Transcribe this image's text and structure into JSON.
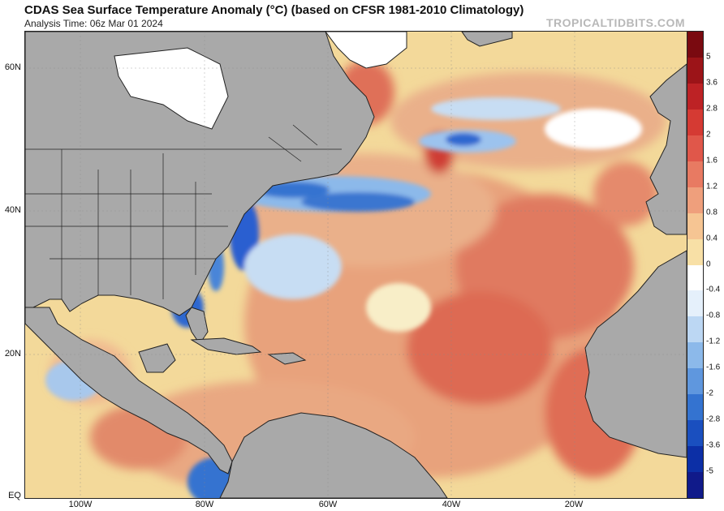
{
  "header": {
    "title": "CDAS Sea Surface Temperature Anomaly (°C) (based on CFSR 1981-2010 Climatology)",
    "subtitle": "Analysis Time: 06z Mar 01 2024",
    "watermark": "TROPICALTIDBITS.COM"
  },
  "map": {
    "lat_labels": [
      "60N",
      "40N",
      "20N",
      "EQ"
    ],
    "lon_labels": [
      "100W",
      "80W",
      "60W",
      "40W",
      "20W"
    ],
    "colors": {
      "land": "#a9a9a9",
      "land_border": "#222222",
      "ice": "#ffffff",
      "ocean_warm": "#e3a07a",
      "ocean_hot": "#d9584a",
      "ocean_mild": "#f3d99a",
      "ocean_cool": "#a8c8ec",
      "ocean_cold": "#2a5fd0"
    }
  },
  "colorbar": {
    "labels": [
      "5",
      "3.6",
      "2.8",
      "2",
      "1.6",
      "1.2",
      "0.8",
      "0.4",
      "0",
      "-0.4",
      "-0.8",
      "-1.2",
      "-1.6",
      "-2",
      "-2.8",
      "-3.6",
      "-5"
    ],
    "colors": [
      "#7a0a10",
      "#9c1418",
      "#bd2225",
      "#d53a33",
      "#e0574a",
      "#e87a62",
      "#ef9f7c",
      "#f6c593",
      "#f8e0a6",
      "#ffffff",
      "#e5f0fb",
      "#bcd7f3",
      "#8cb9ea",
      "#5f97de",
      "#3473d0",
      "#1a4fbf",
      "#0c2fa6",
      "#101a8a"
    ]
  }
}
